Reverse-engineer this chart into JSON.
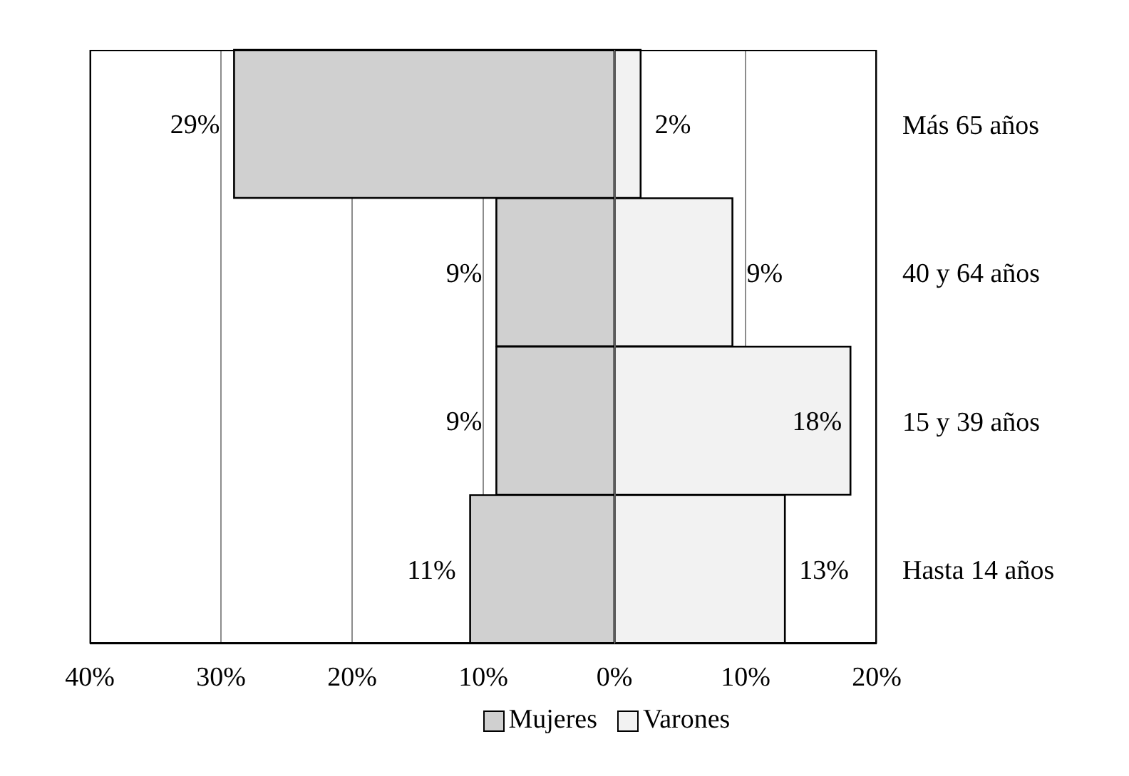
{
  "chart_data": [
    {
      "type": "bar",
      "orientation": "horizontal",
      "categories": [
        null,
        null,
        null,
        null
      ],
      "series": [
        {
          "name": "Mujeres",
          "color": "#d0d0d0",
          "values": [
            29,
            9,
            9,
            11
          ],
          "value_labels": [
            "29%",
            "9%",
            "9%",
            "11%"
          ]
        }
      ],
      "xlim": [
        40,
        0
      ],
      "xticks": [
        {
          "value": 40,
          "label": "40%"
        },
        {
          "value": 30,
          "label": "30%"
        },
        {
          "value": 20,
          "label": "20%"
        },
        {
          "value": 10,
          "label": "10%"
        },
        {
          "value": 0,
          "label": "0%"
        }
      ],
      "tick_labels": "x",
      "grid": "x",
      "legend": "bottom"
    },
    {
      "type": "bar",
      "orientation": "horizontal",
      "categories": [
        "Más 65 años",
        "40 y 64 años",
        "15 y 39 años",
        "Hasta 14 años"
      ],
      "series": [
        {
          "name": "Varones",
          "color": "#f2f2f2",
          "values": [
            2,
            9,
            18,
            13
          ],
          "value_labels": [
            "2%",
            "9%",
            "18%",
            "13%"
          ]
        }
      ],
      "xlim": [
        0,
        20
      ],
      "xticks": [
        {
          "value": 0,
          "label": null
        },
        {
          "value": 10,
          "label": "10%"
        },
        {
          "value": 20,
          "label": "20%"
        }
      ],
      "grid": "x",
      "legend": "bottom"
    }
  ]
}
